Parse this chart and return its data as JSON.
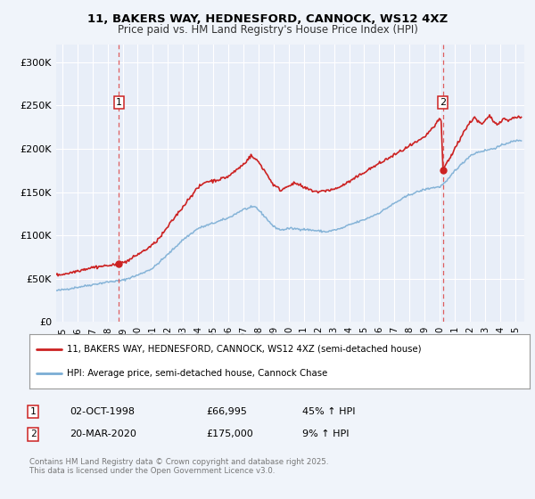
{
  "title1": "11, BAKERS WAY, HEDNESFORD, CANNOCK, WS12 4XZ",
  "title2": "Price paid vs. HM Land Registry's House Price Index (HPI)",
  "background_color": "#f0f4fa",
  "plot_bg_color": "#e8eef8",
  "grid_color": "#ffffff",
  "red_color": "#cc2222",
  "blue_color": "#7aadd4",
  "dashed_color": "#dd4444",
  "ylim": [
    0,
    320000
  ],
  "yticks": [
    0,
    50000,
    100000,
    150000,
    200000,
    250000,
    300000
  ],
  "ytick_labels": [
    "£0",
    "£50K",
    "£100K",
    "£150K",
    "£200K",
    "£250K",
    "£300K"
  ],
  "xmin": 1994.6,
  "xmax": 2025.6,
  "marker1_x": 1998.75,
  "marker1_y": 66995,
  "marker1_label": "1",
  "marker2_x": 2020.22,
  "marker2_y": 175000,
  "marker2_label": "2",
  "legend_line1": "11, BAKERS WAY, HEDNESFORD, CANNOCK, WS12 4XZ (semi-detached house)",
  "legend_line2": "HPI: Average price, semi-detached house, Cannock Chase",
  "table_row1": [
    "1",
    "02-OCT-1998",
    "£66,995",
    "45% ↑ HPI"
  ],
  "table_row2": [
    "2",
    "20-MAR-2020",
    "£175,000",
    "9% ↑ HPI"
  ],
  "footnote": "Contains HM Land Registry data © Crown copyright and database right 2025.\nThis data is licensed under the Open Government Licence v3.0.",
  "fig_width": 6.0,
  "fig_height": 5.6
}
